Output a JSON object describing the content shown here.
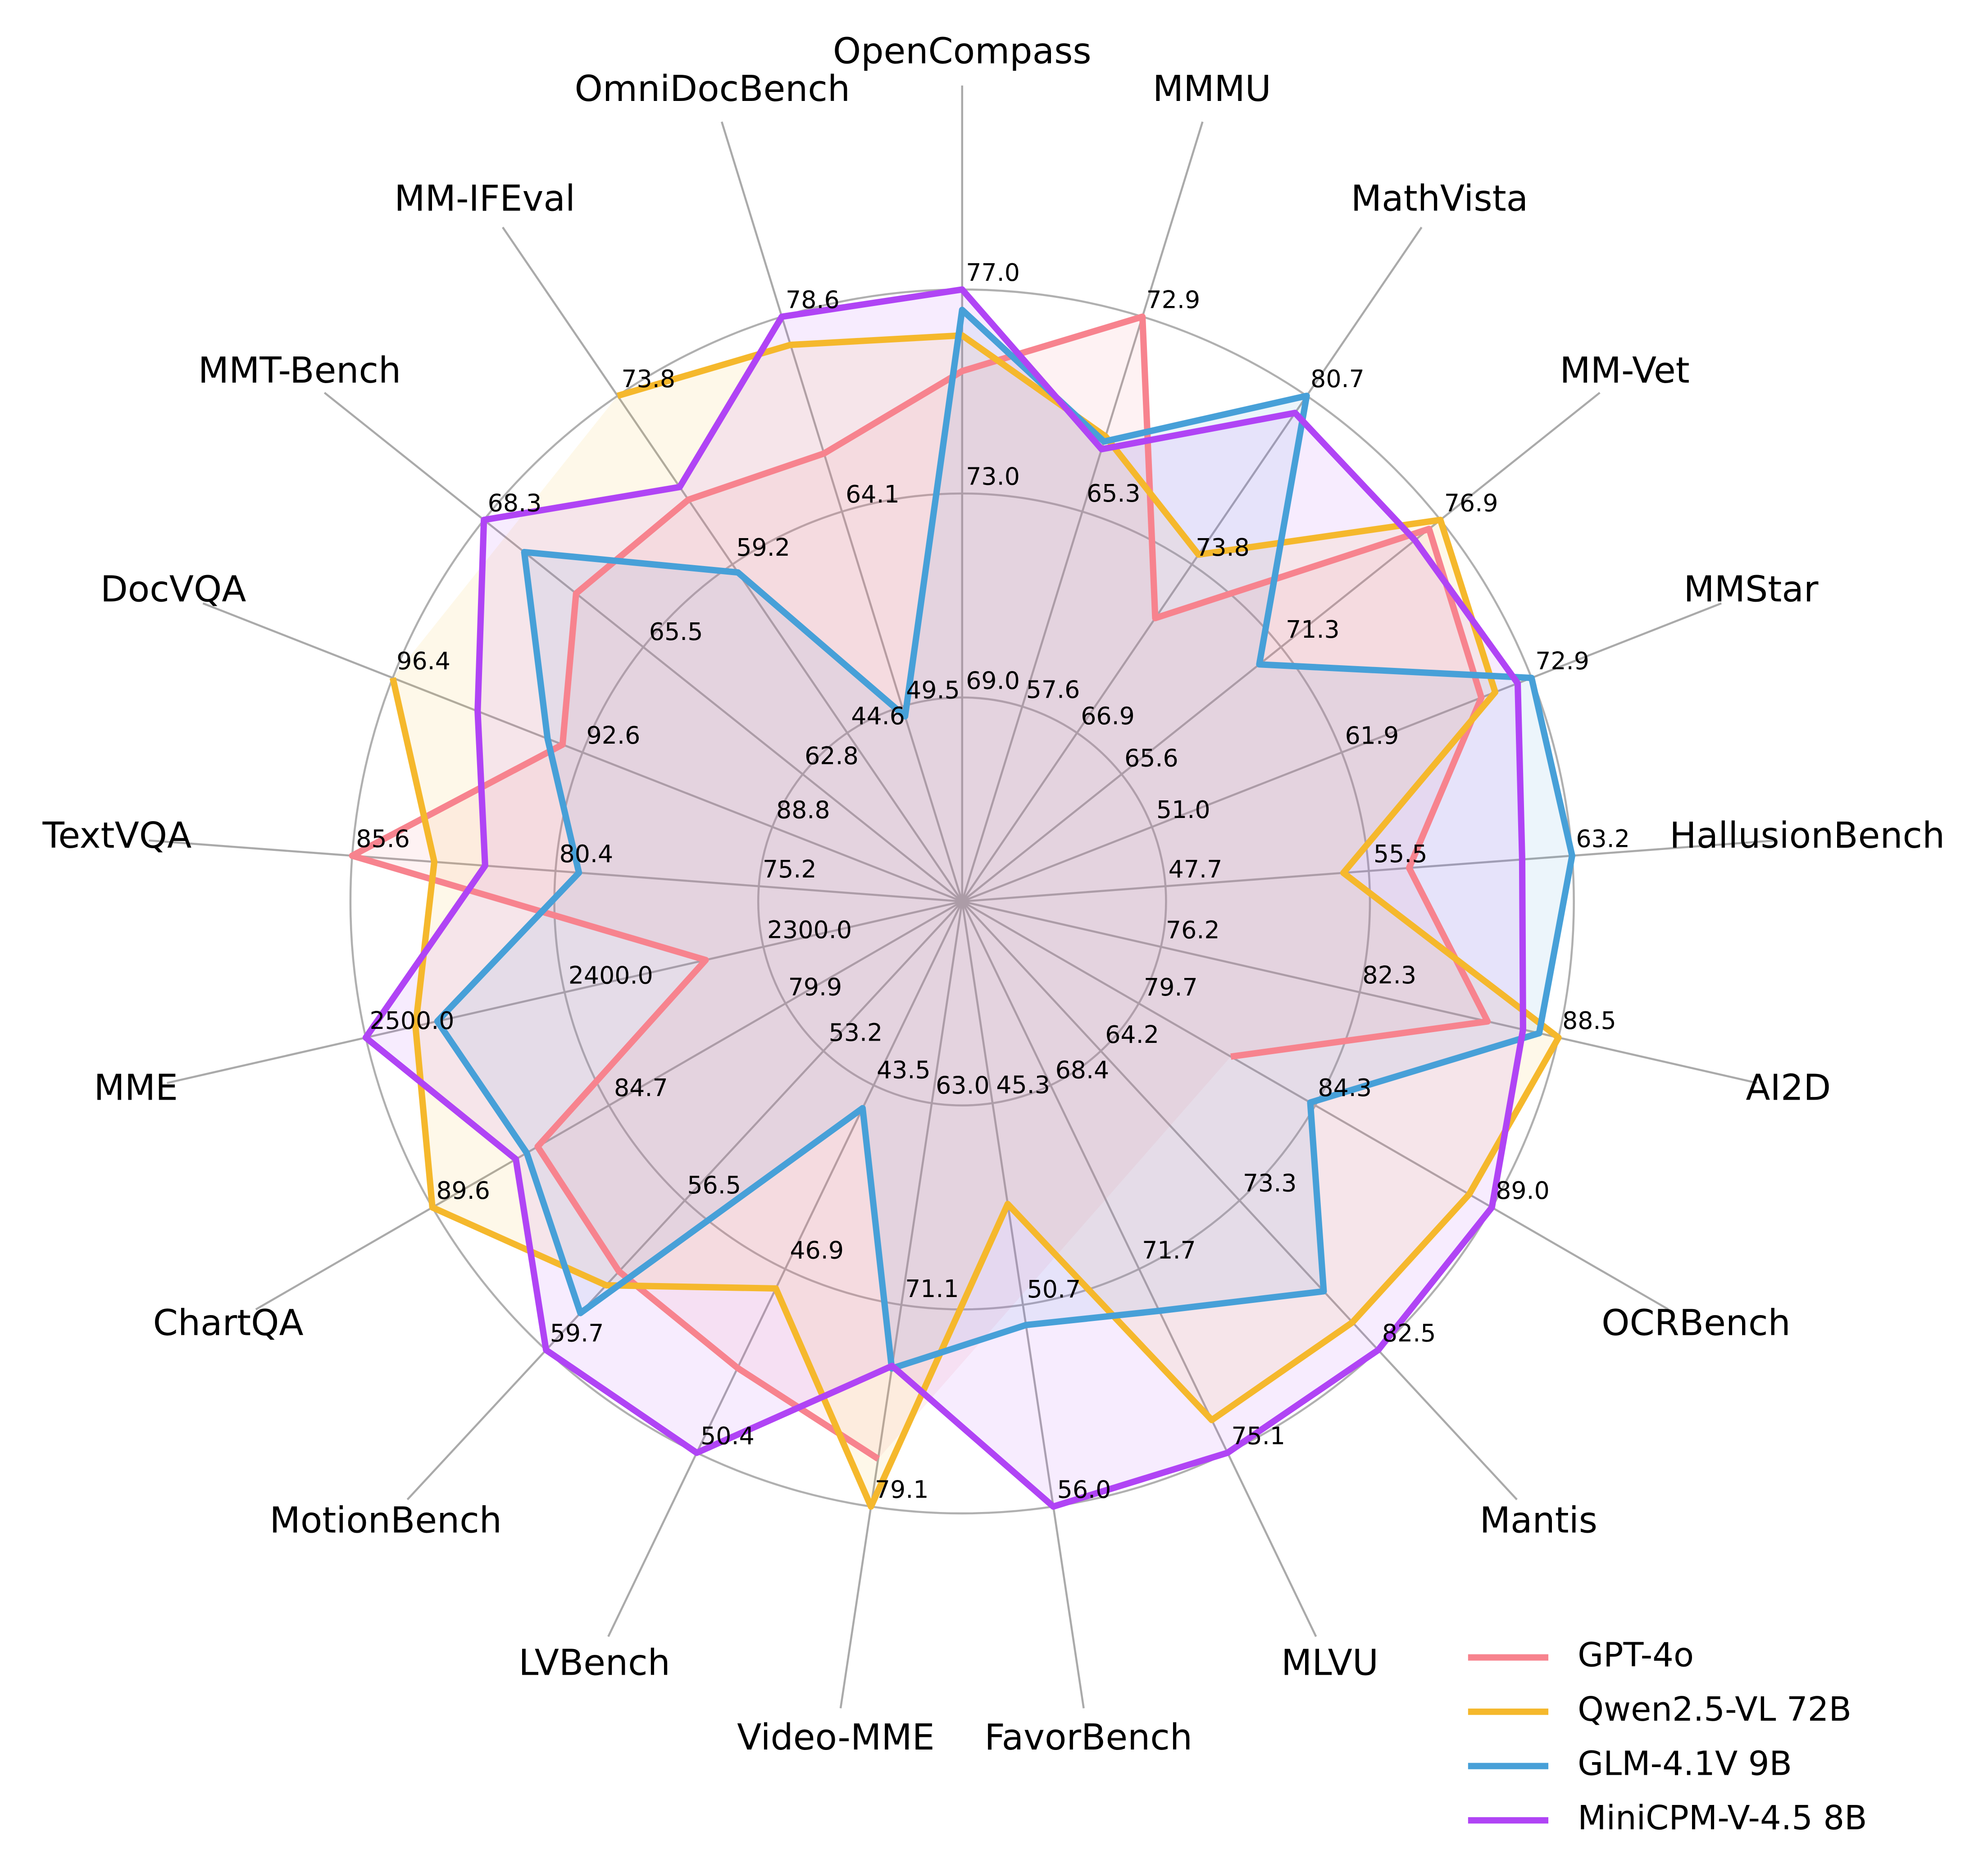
{
  "chart_data": {
    "type": "radar",
    "grid": true,
    "legend": "lower right",
    "categories": [
      "OpenCompass",
      "MMMU",
      "MathVista",
      "MM-Vet",
      "MMStar",
      "HallusionBench",
      "AI2D",
      "OCRBench",
      "Mantis",
      "MLVU",
      "FavorBench",
      "Video-MME",
      "LVBench",
      "MotionBench",
      "ChartQA",
      "MME",
      "TextVQA",
      "DocVQA",
      "MMT-Bench",
      "MM-IFEval",
      "OmniDocBench"
    ],
    "axes": [
      {
        "lim": [
          65,
          77
        ],
        "ticks": [
          {
            "value": 69,
            "label": "69.0"
          },
          {
            "value": 73,
            "label": "73.0"
          },
          {
            "value": 77,
            "label": "77.0"
          }
        ]
      },
      {
        "lim": [
          49.95,
          72.9
        ],
        "ticks": [
          57.6,
          65.3,
          72.9
        ]
      },
      {
        "lim": [
          60,
          80.7
        ],
        "ticks": [
          66.9,
          73.8,
          80.7
        ]
      },
      {
        "lim": [
          60,
          76.9
        ],
        "ticks": [
          65.6,
          71.3,
          76.9
        ]
      },
      {
        "lim": [
          40,
          72.9
        ],
        "ticks": [
          {
            "value": 51,
            "label": "51.0"
          },
          61.9,
          72.9
        ]
      },
      {
        "lim": [
          40,
          63.2
        ],
        "ticks": [
          47.7,
          55.5,
          63.2
        ]
      },
      {
        "lim": [
          70,
          88.5
        ],
        "ticks": [
          76.2,
          82.3,
          88.5
        ]
      },
      {
        "lim": [
          75,
          89
        ],
        "ticks": [
          79.7,
          84.3,
          {
            "value": 89,
            "label": "89.0"
          }
        ]
      },
      {
        "lim": [
          55,
          82.5
        ],
        "ticks": [
          64.2,
          73.3,
          82.5
        ]
      },
      {
        "lim": [
          65,
          75.1
        ],
        "ticks": [
          68.4,
          71.7,
          75.1
        ]
      },
      {
        "lim": [
          40,
          56
        ],
        "ticks": [
          45.3,
          50.7,
          {
            "value": 56,
            "label": "56.0"
          }
        ]
      },
      {
        "lim": [
          55,
          79.1
        ],
        "ticks": [
          {
            "value": 63,
            "label": "63.0"
          },
          71.1,
          79.1
        ]
      },
      {
        "lim": [
          40,
          50.4
        ],
        "ticks": [
          43.5,
          46.9,
          50.4
        ]
      },
      {
        "lim": [
          50,
          59.7
        ],
        "ticks": [
          53.2,
          56.5,
          59.7
        ]
      },
      {
        "lim": [
          75,
          89.6
        ],
        "ticks": [
          79.9,
          84.7,
          89.6
        ]
      },
      {
        "lim": [
          2200,
          2500
        ],
        "ticks": [
          {
            "value": 2300,
            "label": "2300.0"
          },
          {
            "value": 2400,
            "label": "2400.0"
          },
          {
            "value": 2500,
            "label": "2500.0"
          }
        ]
      },
      {
        "lim": [
          70,
          85.6
        ],
        "ticks": [
          75.2,
          80.4,
          85.6
        ]
      },
      {
        "lim": [
          85,
          96.4
        ],
        "ticks": [
          88.8,
          92.6,
          96.4
        ]
      },
      {
        "lim": [
          60,
          68.3
        ],
        "ticks": [
          62.8,
          65.5,
          68.3
        ]
      },
      {
        "lim": [
          30,
          73.8
        ],
        "ticks": [
          44.6,
          59.2,
          73.8
        ]
      },
      {
        "lim": [
          35,
          78.6
        ],
        "ticks": [
          49.5,
          64.1,
          78.6
        ]
      }
    ],
    "series": [
      {
        "name": "GPT-4o",
        "color": "#f7838e",
        "values": [
          75.4,
          72.9,
          71.6,
          76.5,
          70.0,
          57.0,
          86.3,
          82.1,
          null,
          null,
          null,
          77.2,
          48.8,
          58.0,
          86.7,
          2329,
          85.6,
          93.0,
          66.7,
          64.8,
          68.4
        ]
      },
      {
        "name": "Qwen2.5-VL 72B",
        "color": "#f5b82c",
        "values": [
          76.1,
          68.2,
          74.2,
          76.9,
          70.8,
          54.5,
          88.5,
          88.4,
          80.8,
          74.5,
          48.0,
          79.1,
          47.3,
          58.3,
          89.6,
          2475,
          83.5,
          96.4,
          null,
          73.8,
          76.5
        ]
      },
      {
        "name": "GLM-4.1V 9B",
        "color": "#47a0d8",
        "values": [
          76.6,
          68.0,
          80.7,
          70.5,
          72.9,
          63.2,
          87.9,
          84.2,
          78.9,
          72.5,
          51.2,
          73.6,
          43.9,
          58.9,
          87.0,
          2464,
          79.8,
          93.3,
          67.6,
          58.5,
          48.8
        ]
      },
      {
        "name": "MiniCPM-V-4.5 8B",
        "color": "#b044f5",
        "values": [
          77.0,
          67.7,
          80.0,
          76.0,
          72.1,
          61.3,
          87.4,
          89.0,
          82.5,
          75.1,
          56.0,
          73.5,
          50.4,
          59.7,
          87.3,
          2500,
          82.2,
          94.7,
          68.3,
          65.9,
          78.6
        ]
      }
    ]
  }
}
